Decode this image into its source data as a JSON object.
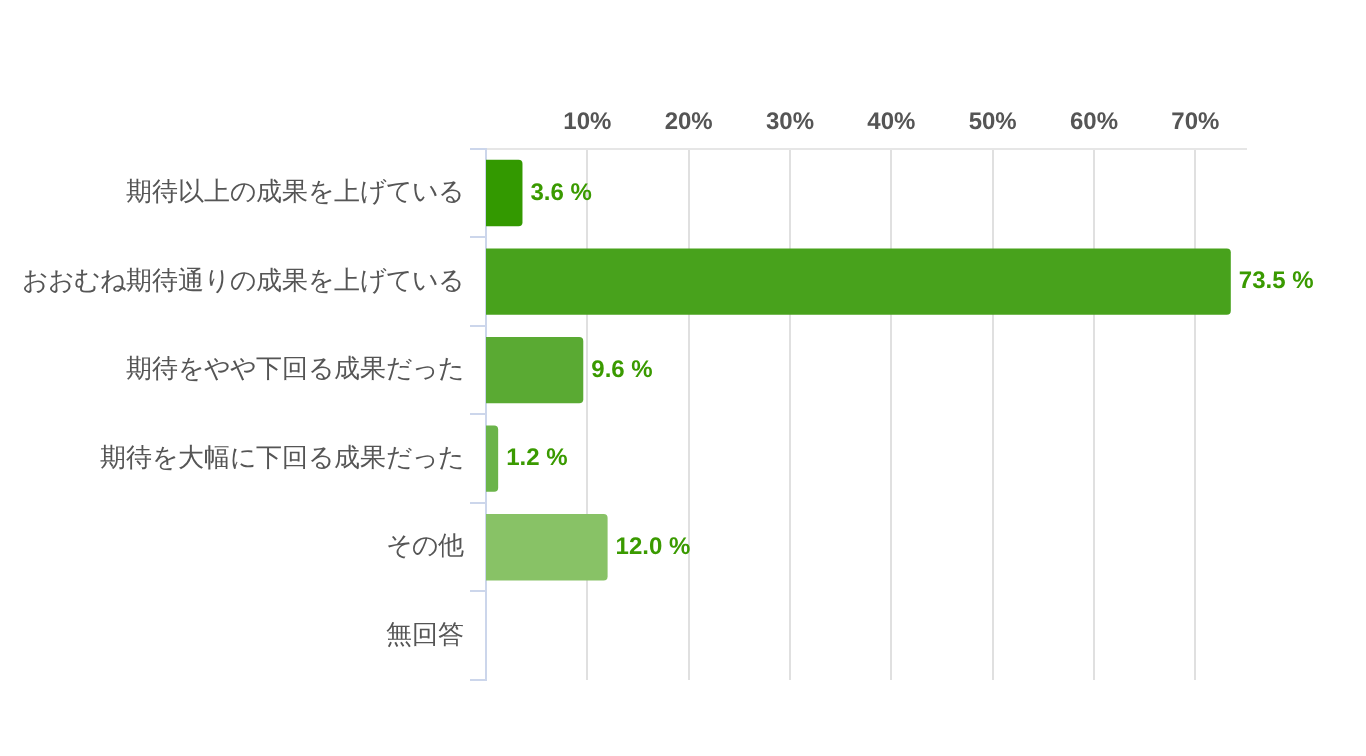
{
  "chart_data": {
    "type": "bar",
    "orientation": "horizontal",
    "categories": [
      "期待以上の成果を上げている",
      "おおむね期待通りの成果を上げている",
      "期待をやや下回る成果だった",
      "期待を大幅に下回る成果だった",
      "その他",
      "無回答"
    ],
    "values": [
      3.6,
      73.5,
      9.6,
      1.2,
      12.0,
      null
    ],
    "colors": [
      "#339900",
      "#48a21c",
      "#5aaa33",
      "#6bb44a",
      "#88c266",
      "#88c266"
    ],
    "value_labels": [
      "3.6 %",
      "73.5 %",
      "9.6 %",
      "1.2 %",
      "12.0 %",
      null
    ],
    "xlim": [
      0,
      75
    ],
    "xticks": [
      {
        "value": 10,
        "label": "10%"
      },
      {
        "value": 20,
        "label": "20%"
      },
      {
        "value": 30,
        "label": "30%"
      },
      {
        "value": 40,
        "label": "40%"
      },
      {
        "value": 50,
        "label": "50%"
      },
      {
        "value": 60,
        "label": "60%"
      },
      {
        "value": 70,
        "label": "70%"
      }
    ],
    "grid": "x",
    "legend": false
  }
}
